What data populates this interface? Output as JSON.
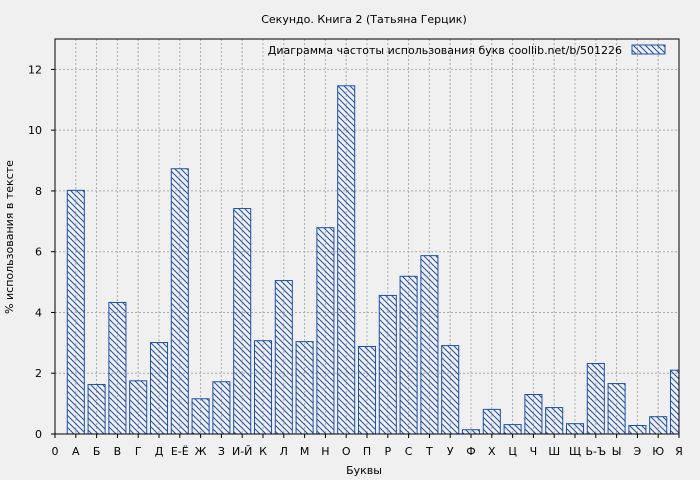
{
  "chart_data": {
    "type": "bar",
    "title": "Секундо. Книга 2 (Татьяна Герцик)",
    "xlabel": "Буквы",
    "ylabel": "% использования в тексте",
    "legend": {
      "label": "Диаграмма частоты использования букв  coollib.net/b/501226",
      "position": "top-right"
    },
    "ylim": [
      0,
      13
    ],
    "yticks": [
      0,
      2,
      4,
      6,
      8,
      10,
      12
    ],
    "grid": true,
    "x_tick_labels": [
      "0",
      "А",
      "Б",
      "В",
      "Г",
      "Д",
      "Е-Ё",
      "Ж",
      "З",
      "И-Й",
      "К",
      "Л",
      "М",
      "Н",
      "О",
      "П",
      "Р",
      "С",
      "Т",
      "У",
      "Ф",
      "Х",
      "Ц",
      "Ч",
      "Ш",
      "Щ",
      "Ь-Ъ",
      "Ы",
      "Э",
      "Ю",
      "Я"
    ],
    "categories": [
      "А",
      "Б",
      "В",
      "Г",
      "Д",
      "Е-Ё",
      "Ж",
      "З",
      "И-Й",
      "К",
      "Л",
      "М",
      "Н",
      "О",
      "П",
      "Р",
      "С",
      "Т",
      "У",
      "Ф",
      "Х",
      "Ц",
      "Ч",
      "Ш",
      "Щ",
      "Ь-Ъ",
      "Ы",
      "Э",
      "Ю",
      "Я"
    ],
    "values": [
      8.02,
      1.63,
      4.33,
      1.75,
      3.01,
      8.73,
      1.16,
      1.72,
      7.42,
      3.07,
      5.05,
      3.04,
      6.79,
      11.46,
      2.88,
      4.56,
      5.19,
      5.87,
      2.91,
      0.14,
      0.81,
      0.31,
      1.3,
      0.87,
      0.34,
      2.32,
      1.66,
      0.28,
      0.57,
      2.1
    ]
  },
  "colors": {
    "bar_stroke": "#1f4fa8",
    "background": "#f0f0f0",
    "grid": "#aaaaaa"
  }
}
